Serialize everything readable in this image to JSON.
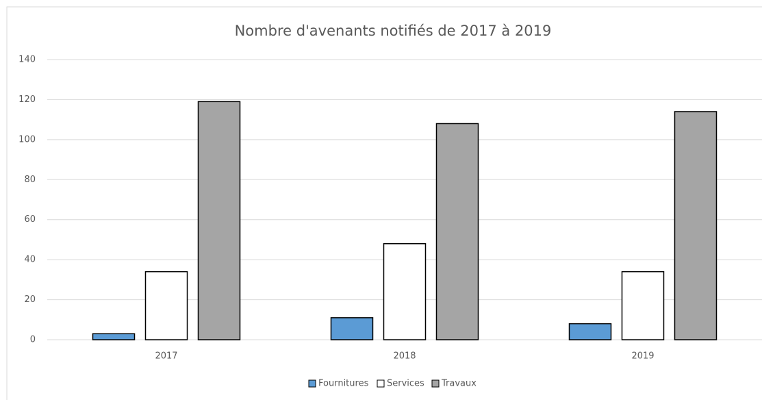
{
  "chart_data": {
    "type": "bar",
    "title": "Nombre d'avenants notifiés de 2017 à 2019",
    "categories": [
      "2017",
      "2018",
      "2019"
    ],
    "series": [
      {
        "name": "Fournitures",
        "color": "#5b9bd5",
        "values": [
          3,
          11,
          8
        ]
      },
      {
        "name": "Services",
        "color": "#ffffff",
        "values": [
          34,
          48,
          34
        ]
      },
      {
        "name": "Travaux",
        "color": "#a5a5a5",
        "values": [
          119,
          108,
          114
        ]
      }
    ],
    "ylim": [
      0,
      140
    ],
    "yticks": [
      0,
      20,
      40,
      60,
      80,
      100,
      120,
      140
    ],
    "grid": true,
    "legend": "bottom"
  }
}
